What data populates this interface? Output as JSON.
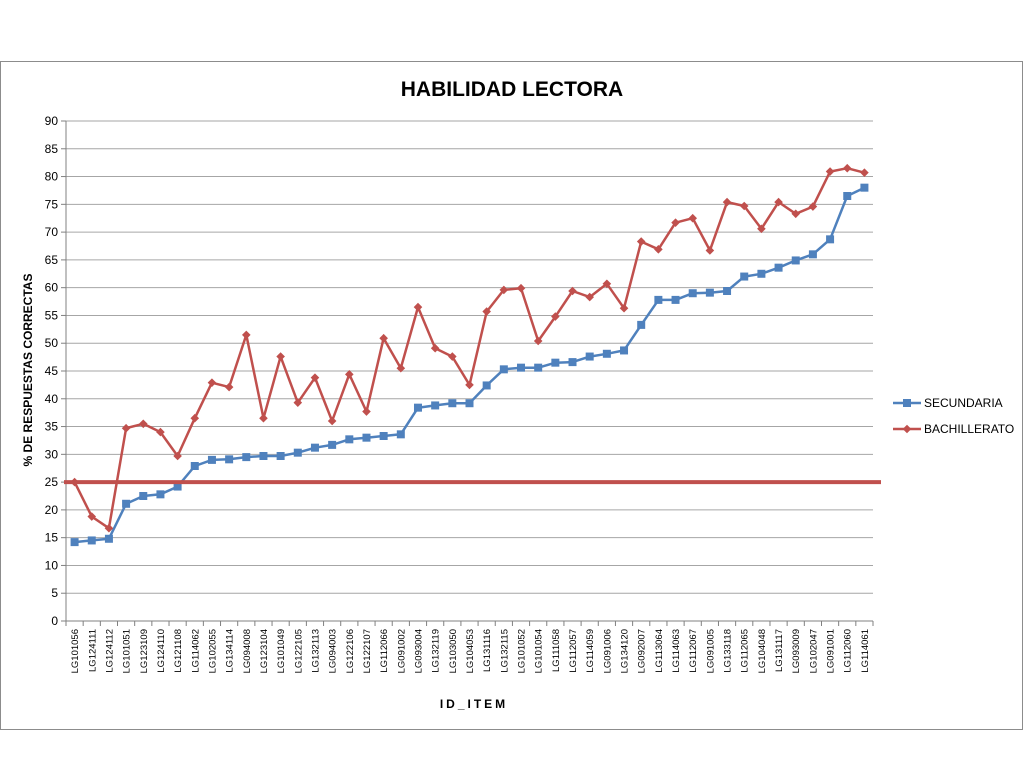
{
  "chart_data": {
    "type": "line",
    "title": "HABILIDAD LECTORA",
    "xlabel": "ID_ITEM",
    "ylabel": "% DE RESPUESTAS CORRECTAS",
    "ylim": [
      0,
      90
    ],
    "yticks": [
      0,
      5,
      10,
      15,
      20,
      25,
      30,
      35,
      40,
      45,
      50,
      55,
      60,
      65,
      70,
      75,
      80,
      85,
      90
    ],
    "grid": true,
    "legend_position": "right",
    "reference_line": {
      "value": 25,
      "color": "#c0504d"
    },
    "categories": [
      "LG101056",
      "LG124111",
      "LG124112",
      "LG101051",
      "LG123109",
      "LG124110",
      "LG121108",
      "LG114062",
      "LG102055",
      "LG134114",
      "LG094008",
      "LG123104",
      "LG101049",
      "LG122105",
      "LG132113",
      "LG094003",
      "LG122106",
      "LG122107",
      "LG112066",
      "LG091002",
      "LG093004",
      "LG132119",
      "LG103050",
      "LG104053",
      "LG131116",
      "LG132115",
      "LG101052",
      "LG101054",
      "LG111058",
      "LG112057",
      "LG114059",
      "LG091006",
      "LG134120",
      "LG092007",
      "LG113064",
      "LG114063",
      "LG112067",
      "LG091005",
      "LG133118",
      "LG112065",
      "LG104048",
      "LG131117",
      "LG093009",
      "LG102047",
      "LG091001",
      "LG112060",
      "LG114061"
    ],
    "series": [
      {
        "name": "SECUNDARIA",
        "color": "#4f81bd",
        "marker": "square",
        "values": [
          14.2,
          14.5,
          14.8,
          21.1,
          22.5,
          22.8,
          24.2,
          27.9,
          29.0,
          29.1,
          29.5,
          29.7,
          29.7,
          30.3,
          31.2,
          31.7,
          32.7,
          33.0,
          33.3,
          33.6,
          38.4,
          38.8,
          39.2,
          39.2,
          42.4,
          45.3,
          45.6,
          45.6,
          46.5,
          46.6,
          47.6,
          48.1,
          48.7,
          53.3,
          57.8,
          57.8,
          59.0,
          59.1,
          59.4,
          62.0,
          62.5,
          63.6,
          64.9,
          66.0,
          68.7,
          76.5,
          78.0
        ]
      },
      {
        "name": "BACHILLERATO",
        "color": "#c0504d",
        "marker": "diamond",
        "values": [
          25.0,
          18.8,
          16.7,
          34.7,
          35.5,
          34.0,
          29.7,
          36.5,
          42.9,
          42.1,
          51.5,
          36.5,
          47.6,
          39.3,
          43.8,
          36.0,
          44.4,
          37.7,
          50.9,
          45.5,
          56.5,
          49.1,
          47.6,
          42.5,
          55.7,
          59.6,
          59.9,
          50.4,
          54.8,
          59.4,
          58.3,
          60.7,
          56.3,
          68.3,
          66.9,
          71.7,
          72.5,
          66.7,
          75.4,
          74.7,
          70.6,
          75.4,
          73.3,
          74.6,
          80.9,
          81.5,
          80.7
        ]
      }
    ]
  }
}
